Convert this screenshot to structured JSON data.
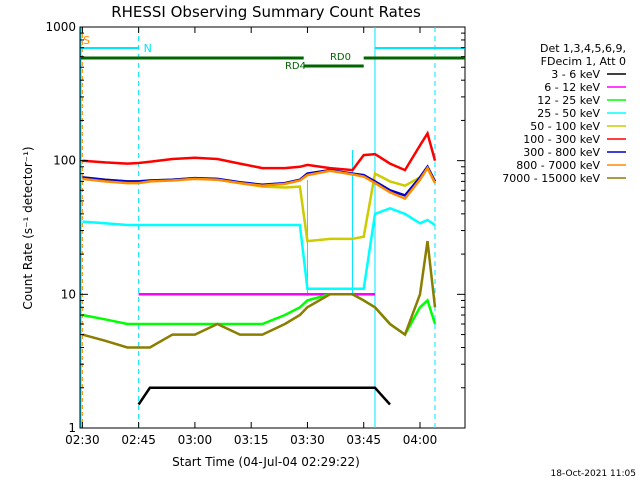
{
  "chart_data": {
    "type": "line",
    "title": "RHESSI Observing Summary Count Rates",
    "xlabel": "Start Time (04-Jul-04 02:29:22)",
    "ylabel": "Count Rate (s⁻¹ detector⁻¹)",
    "ylog": true,
    "ylim": [
      1,
      1000
    ],
    "xlim": [
      "02:29:22",
      "04:12:00"
    ],
    "x_ticks": [
      "02:30",
      "02:45",
      "03:00",
      "03:15",
      "03:30",
      "03:45",
      "04:00"
    ],
    "y_ticks": [
      "1",
      "10",
      "100",
      "1000"
    ],
    "legend_header": [
      "Det 1,3,4,5,6,9,",
      "FDecim 1, Att 0"
    ],
    "legend_position": "right",
    "date_stamp": "18-Oct-2021 11:05",
    "annotations": {
      "saa_label": "S",
      "night_label": "N",
      "rd0_label": "RD0",
      "rd4_label": "RD4"
    },
    "colors": {
      "saa": "#ff8c00",
      "night": "#00e5ff",
      "decimation": "#006400"
    },
    "x": [
      "02:30",
      "02:36",
      "02:42",
      "02:45",
      "02:48",
      "02:54",
      "03:00",
      "03:06",
      "03:12",
      "03:18",
      "03:24",
      "03:28",
      "03:30",
      "03:36",
      "03:42",
      "03:45",
      "03:48",
      "03:52",
      "03:56",
      "04:00",
      "04:02",
      "04:04"
    ],
    "series": [
      {
        "name": "3 - 6 keV",
        "color": "#000000",
        "values": [
          null,
          null,
          null,
          1.5,
          2,
          2,
          2,
          2,
          2,
          2,
          2,
          2,
          2,
          2,
          2,
          2,
          2,
          1.5,
          null,
          null,
          null,
          null
        ]
      },
      {
        "name": "6 - 12 keV",
        "color": "#ff00ff",
        "values": [
          null,
          null,
          null,
          10,
          10,
          10,
          10,
          10,
          10,
          10,
          10,
          10,
          10,
          10,
          10,
          10,
          10,
          null,
          null,
          null,
          null,
          null
        ]
      },
      {
        "name": "12 - 25 keV",
        "color": "#00ff00",
        "values": [
          7,
          6.5,
          6,
          6,
          6,
          6,
          6,
          6,
          6,
          6,
          7,
          8,
          9,
          10,
          10,
          9,
          8,
          6,
          5,
          8,
          9,
          6
        ]
      },
      {
        "name": "25 - 50 keV",
        "color": "#00ffff",
        "values": [
          35,
          34,
          33,
          33,
          33,
          33,
          33,
          33,
          33,
          33,
          33,
          33,
          11,
          11,
          11,
          11,
          40,
          44,
          40,
          34,
          36,
          33
        ]
      },
      {
        "name": "50 - 100 keV",
        "color": "#cccc00",
        "values": [
          75,
          72,
          70,
          70,
          71,
          72,
          74,
          72,
          68,
          64,
          63,
          64,
          25,
          26,
          26,
          27,
          80,
          70,
          65,
          75,
          90,
          70
        ]
      },
      {
        "name": "100 - 300 keV",
        "color": "#ff0000",
        "values": [
          100,
          97,
          95,
          96,
          98,
          103,
          105,
          103,
          95,
          88,
          88,
          90,
          93,
          88,
          85,
          110,
          112,
          95,
          85,
          130,
          160,
          100
        ]
      },
      {
        "name": "300 - 800 keV",
        "color": "#0000cc",
        "values": [
          75,
          72,
          70,
          70,
          71,
          72,
          74,
          73,
          69,
          66,
          68,
          72,
          80,
          85,
          80,
          78,
          70,
          60,
          55,
          75,
          90,
          70
        ]
      },
      {
        "name": "800 - 7000 keV",
        "color": "#ff8c00",
        "values": [
          73,
          70,
          68,
          68,
          70,
          71,
          73,
          72,
          68,
          65,
          67,
          71,
          78,
          84,
          79,
          76,
          68,
          58,
          52,
          72,
          88,
          68
        ]
      },
      {
        "name": "7000 - 15000 keV",
        "color": "#8b7d00",
        "values": [
          5,
          4.5,
          4,
          4,
          4,
          5,
          5,
          6,
          5,
          5,
          6,
          7,
          8,
          10,
          10,
          9,
          8,
          6,
          5,
          10,
          25,
          8
        ]
      }
    ]
  }
}
